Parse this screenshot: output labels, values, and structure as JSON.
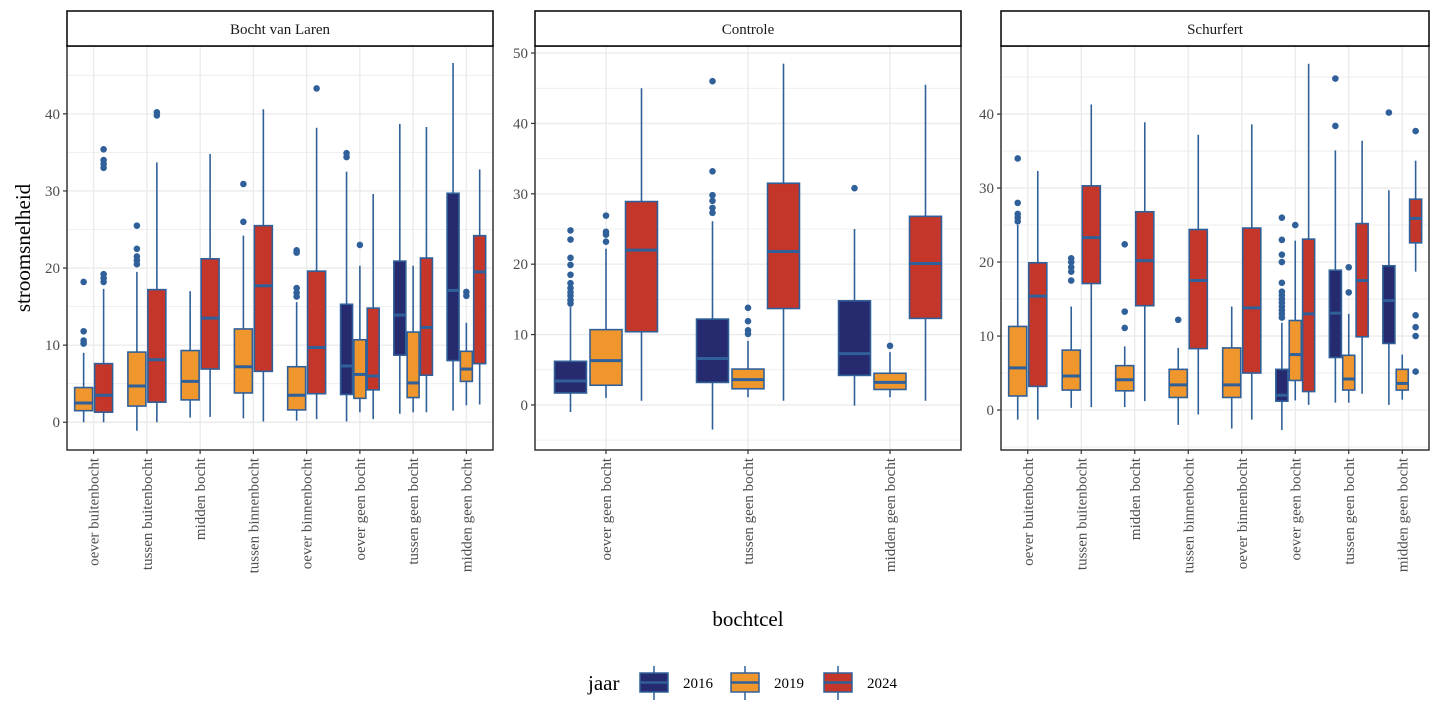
{
  "chart_data": {
    "type": "boxplot",
    "facet_layout": "3 panels in one row, free y scales",
    "xlabel": "bochtcel",
    "ylabel": "stroomsnelheid",
    "grid": true,
    "legend": {
      "title": "jaar",
      "placement": "bottom",
      "entries": [
        "2016",
        "2019",
        "2024"
      ]
    },
    "colors": {
      "2016": "#262a6e",
      "2019": "#ef962d",
      "2024": "#c43629",
      "outline": "#30609a"
    },
    "panels": [
      {
        "title": "Bocht van Laren",
        "ylim": [
          -3.6,
          48.8
        ],
        "yticks": [
          "0",
          "10",
          "20",
          "30",
          "40"
        ],
        "categories": [
          "oever buitenbocht",
          "tussen buitenbocht",
          "midden bocht",
          "tussen binnenbocht",
          "oever binnenbocht",
          "oever geen bocht",
          "tussen geen bocht",
          "midden geen bocht"
        ],
        "boxes": [
          {
            "category": "oever buitenbocht",
            "jaar": "2019",
            "min": 0,
            "q1": 1.5,
            "median": 2.5,
            "q3": 4.5,
            "max": 9,
            "outliers": [
              10.2,
              10.6,
              11.8,
              18.2
            ]
          },
          {
            "category": "oever buitenbocht",
            "jaar": "2024",
            "min": 0,
            "q1": 1.3,
            "median": 3.5,
            "q3": 7.6,
            "max": 17.3,
            "outliers": [
              18.2,
              18.7,
              19.2,
              33,
              33.5,
              34,
              35.4
            ]
          },
          {
            "category": "tussen buitenbocht",
            "jaar": "2019",
            "min": -1.1,
            "q1": 2.1,
            "median": 4.7,
            "q3": 9.1,
            "max": 19.5,
            "outliers": [
              20.5,
              21,
              21.5,
              22.5,
              25.5
            ]
          },
          {
            "category": "tussen buitenbocht",
            "jaar": "2024",
            "min": 0,
            "q1": 2.6,
            "median": 8.1,
            "q3": 17.2,
            "max": 33.7,
            "outliers": [
              39.8,
              40.2
            ]
          },
          {
            "category": "midden bocht",
            "jaar": "2019",
            "min": 0.6,
            "q1": 2.9,
            "median": 5.3,
            "q3": 9.3,
            "max": 17,
            "outliers": []
          },
          {
            "category": "midden bocht",
            "jaar": "2024",
            "min": 0.7,
            "q1": 6.9,
            "median": 13.5,
            "q3": 21.2,
            "max": 34.8,
            "outliers": []
          },
          {
            "category": "tussen binnenbocht",
            "jaar": "2019",
            "min": 0.5,
            "q1": 3.8,
            "median": 7.2,
            "q3": 12.1,
            "max": 24.2,
            "outliers": [
              26,
              30.9
            ]
          },
          {
            "category": "tussen binnenbocht",
            "jaar": "2024",
            "min": 0.1,
            "q1": 6.6,
            "median": 17.7,
            "q3": 25.5,
            "max": 40.6,
            "outliers": []
          },
          {
            "category": "oever binnenbocht",
            "jaar": "2019",
            "min": 0.2,
            "q1": 1.6,
            "median": 3.5,
            "q3": 7.2,
            "max": 15.6,
            "outliers": [
              16.3,
              16.8,
              17.4,
              22,
              22.3
            ]
          },
          {
            "category": "oever binnenbocht",
            "jaar": "2024",
            "min": 0.4,
            "q1": 3.7,
            "median": 9.7,
            "q3": 19.6,
            "max": 38.2,
            "outliers": [
              43.3
            ]
          },
          {
            "category": "oever geen bocht",
            "jaar": "2016",
            "min": 0.1,
            "q1": 3.6,
            "median": 7.3,
            "q3": 15.3,
            "max": 32.5,
            "outliers": [
              34.4,
              34.9
            ]
          },
          {
            "category": "oever geen bocht",
            "jaar": "2019",
            "min": 1.3,
            "q1": 3.1,
            "median": 6.2,
            "q3": 10.7,
            "max": 20.3,
            "outliers": [
              23
            ]
          },
          {
            "category": "oever geen bocht",
            "jaar": "2024",
            "min": 0.4,
            "q1": 4.2,
            "median": 6.0,
            "q3": 14.8,
            "max": 29.6,
            "outliers": []
          },
          {
            "category": "tussen geen bocht",
            "jaar": "2016",
            "min": 1.1,
            "q1": 8.7,
            "median": 13.9,
            "q3": 20.9,
            "max": 38.7,
            "outliers": []
          },
          {
            "category": "tussen geen bocht",
            "jaar": "2019",
            "min": 1.3,
            "q1": 3.2,
            "median": 5.1,
            "q3": 11.7,
            "max": 20.3,
            "outliers": []
          },
          {
            "category": "tussen geen bocht",
            "jaar": "2024",
            "min": 1.3,
            "q1": 6.1,
            "median": 12.3,
            "q3": 21.3,
            "max": 38.3,
            "outliers": []
          },
          {
            "category": "midden geen bocht",
            "jaar": "2016",
            "min": 1.5,
            "q1": 8.0,
            "median": 17.1,
            "q3": 29.7,
            "max": 46.6,
            "outliers": []
          },
          {
            "category": "midden geen bocht",
            "jaar": "2019",
            "min": 2.2,
            "q1": 5.3,
            "median": 6.9,
            "q3": 9.2,
            "max": 12.9,
            "outliers": [
              16.4,
              16.9
            ]
          },
          {
            "category": "midden geen bocht",
            "jaar": "2024",
            "min": 2.3,
            "q1": 7.6,
            "median": 19.5,
            "q3": 24.2,
            "max": 32.8,
            "outliers": []
          }
        ]
      },
      {
        "title": "Controle",
        "ylim": [
          -6.4,
          51
        ],
        "yticks": [
          "0",
          "10",
          "20",
          "30",
          "40",
          "50"
        ],
        "categories": [
          "oever geen bocht",
          "tussen geen bocht",
          "midden geen bocht"
        ],
        "boxes": [
          {
            "category": "oever geen bocht",
            "jaar": "2016",
            "min": -1,
            "q1": 1.7,
            "median": 3.4,
            "q3": 6.2,
            "max": 13.9,
            "outliers": [
              14.4,
              14.9,
              15.5,
              16,
              16.6,
              17.3,
              18.5,
              19.9,
              20.9,
              23.5,
              24.8
            ]
          },
          {
            "category": "oever geen bocht",
            "jaar": "2019",
            "min": 1,
            "q1": 2.8,
            "median": 6.3,
            "q3": 10.7,
            "max": 22.2,
            "outliers": [
              23.2,
              24.2,
              24.6,
              26.9
            ]
          },
          {
            "category": "oever geen bocht",
            "jaar": "2024",
            "min": 0.6,
            "q1": 10.4,
            "median": 22,
            "q3": 28.9,
            "max": 45
          },
          {
            "category": "tussen geen bocht",
            "jaar": "2016",
            "min": -3.5,
            "q1": 3.2,
            "median": 6.6,
            "q3": 12.2,
            "max": 26.1,
            "outliers": [
              27.3,
              28,
              29,
              29.8,
              33.2,
              46
            ]
          },
          {
            "category": "tussen geen bocht",
            "jaar": "2019",
            "min": 1.1,
            "q1": 2.3,
            "median": 3.6,
            "q3": 5.1,
            "max": 9.1,
            "outliers": [
              10.1,
              10.6,
              11.9,
              13.8
            ]
          },
          {
            "category": "tussen geen bocht",
            "jaar": "2024",
            "min": 0.6,
            "q1": 13.7,
            "median": 21.8,
            "q3": 31.5,
            "max": 48.5,
            "outliers": []
          },
          {
            "category": "midden geen bocht",
            "jaar": "2016",
            "min": -0.1,
            "q1": 4.2,
            "median": 7.3,
            "q3": 14.8,
            "max": 25,
            "outliers": [
              30.8
            ]
          },
          {
            "category": "midden geen bocht",
            "jaar": "2019",
            "min": 1.1,
            "q1": 2.2,
            "median": 3.2,
            "q3": 4.5,
            "max": 7.5,
            "outliers": [
              8.4
            ]
          },
          {
            "category": "midden geen bocht",
            "jaar": "2024",
            "min": 0.6,
            "q1": 12.3,
            "median": 20.1,
            "q3": 26.8,
            "max": 45.5,
            "outliers": []
          }
        ]
      },
      {
        "title": "Schurfert",
        "ylim": [
          -5.4,
          49.2
        ],
        "yticks": [
          "0",
          "10",
          "20",
          "30",
          "40"
        ],
        "categories": [
          "oever buitenbocht",
          "tussen buitenbocht",
          "midden bocht",
          "tussen binnenbocht",
          "oever binnenbocht",
          "oever geen bocht",
          "tussen geen bocht",
          "midden geen bocht"
        ],
        "boxes": [
          {
            "category": "oever buitenbocht",
            "jaar": "2019",
            "min": -1.3,
            "q1": 1.9,
            "median": 5.7,
            "q3": 11.3,
            "max": 25,
            "outliers": [
              25.5,
              26,
              26.5,
              28,
              34
            ]
          },
          {
            "category": "oever buitenbocht",
            "jaar": "2024",
            "min": -1.3,
            "q1": 3.2,
            "median": 15.4,
            "q3": 19.9,
            "max": 32.3,
            "outliers": []
          },
          {
            "category": "tussen buitenbocht",
            "jaar": "2019",
            "min": 0.3,
            "q1": 2.7,
            "median": 4.6,
            "q3": 8.1,
            "max": 14,
            "outliers": [
              17.5,
              18.7,
              19.3,
              20,
              20.5
            ]
          },
          {
            "category": "tussen buitenbocht",
            "jaar": "2024",
            "min": 0.4,
            "q1": 17.1,
            "median": 23.3,
            "q3": 30.3,
            "max": 41.3,
            "outliers": []
          },
          {
            "category": "midden bocht",
            "jaar": "2019",
            "min": 0.4,
            "q1": 2.6,
            "median": 4.1,
            "q3": 6,
            "max": 8.6,
            "outliers": [
              11.1,
              13.3,
              22.4
            ]
          },
          {
            "category": "midden bocht",
            "jaar": "2024",
            "min": 1.2,
            "q1": 14.1,
            "median": 20.2,
            "q3": 26.8,
            "max": 38.9,
            "outliers": []
          },
          {
            "category": "tussen binnenbocht",
            "jaar": "2019",
            "min": -2,
            "q1": 1.7,
            "median": 3.4,
            "q3": 5.5,
            "max": 8.4,
            "outliers": [
              12.2
            ]
          },
          {
            "category": "tussen binnenbocht",
            "jaar": "2024",
            "min": -0.6,
            "q1": 8.3,
            "median": 17.5,
            "q3": 24.4,
            "max": 37.2,
            "outliers": []
          },
          {
            "category": "oever binnenbocht",
            "jaar": "2019",
            "min": -2.5,
            "q1": 1.7,
            "median": 3.4,
            "q3": 8.4,
            "max": 14,
            "outliers": []
          },
          {
            "category": "oever binnenbocht",
            "jaar": "2024",
            "min": -1.3,
            "q1": 5,
            "median": 13.8,
            "q3": 24.6,
            "max": 38.6,
            "outliers": []
          },
          {
            "category": "oever geen bocht",
            "jaar": "2016",
            "min": -2.7,
            "q1": 1.2,
            "median": 2,
            "q3": 5.5,
            "max": 11.8,
            "outliers": [
              12.5,
              13,
              13.5,
              14,
              14.5,
              15,
              15.5,
              16,
              17.2,
              20,
              21,
              23,
              26
            ]
          },
          {
            "category": "oever geen bocht",
            "jaar": "2019",
            "min": 1.3,
            "q1": 4,
            "median": 7.5,
            "q3": 12.1,
            "max": 22.9,
            "outliers": [
              25
            ]
          },
          {
            "category": "oever geen bocht",
            "jaar": "2024",
            "min": 0.7,
            "q1": 2.5,
            "median": 13,
            "q3": 23.1,
            "max": 46.8,
            "outliers": []
          },
          {
            "category": "tussen geen bocht",
            "jaar": "2016",
            "min": 1,
            "q1": 7.1,
            "median": 13.1,
            "q3": 18.9,
            "max": 35.1,
            "outliers": [
              38.4,
              44.8
            ]
          },
          {
            "category": "tussen geen bocht",
            "jaar": "2019",
            "min": 1,
            "q1": 2.7,
            "median": 4.2,
            "q3": 7.4,
            "max": 13,
            "outliers": [
              15.9,
              19.3
            ]
          },
          {
            "category": "tussen geen bocht",
            "jaar": "2024",
            "min": 2.2,
            "q1": 9.9,
            "median": 17.5,
            "q3": 25.2,
            "max": 36.4,
            "outliers": []
          },
          {
            "category": "midden geen bocht",
            "jaar": "2016",
            "min": 0.7,
            "q1": 9,
            "median": 14.8,
            "q3": 19.5,
            "max": 29.7,
            "outliers": [
              40.2
            ]
          },
          {
            "category": "midden geen bocht",
            "jaar": "2019",
            "min": 1.4,
            "q1": 2.7,
            "median": 3.6,
            "q3": 5.5,
            "max": 7.5,
            "outliers": []
          },
          {
            "category": "midden geen bocht",
            "jaar": "2024",
            "min": 18.7,
            "q1": 22.6,
            "median": 25.9,
            "q3": 28.5,
            "max": 33.7,
            "outliers": [
              5.2,
              10,
              11.2,
              12.8,
              37.7
            ]
          }
        ]
      }
    ]
  }
}
